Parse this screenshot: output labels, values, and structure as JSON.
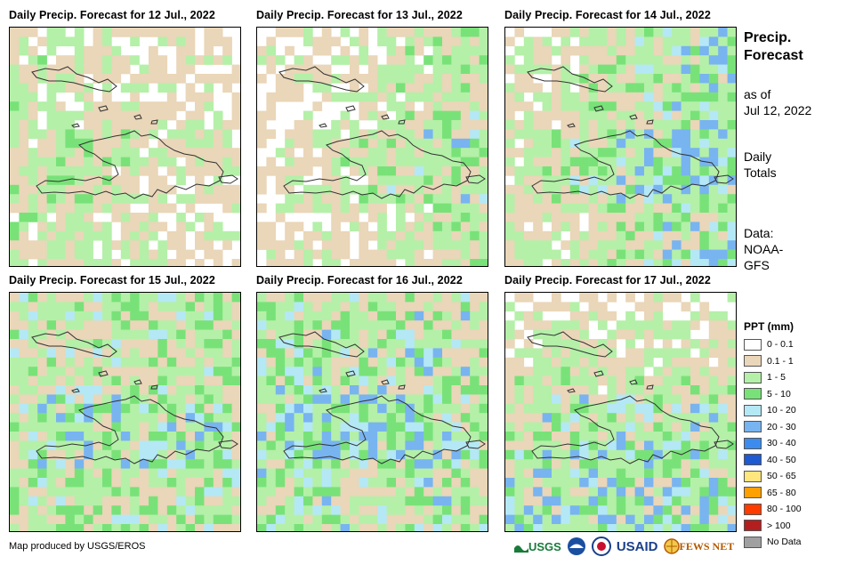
{
  "panels": [
    {
      "title": "Daily Precip. Forecast for 12 Jul., 2022",
      "seed": 11,
      "wet": 0.35,
      "bias": "west"
    },
    {
      "title": "Daily Precip. Forecast for 13 Jul., 2022",
      "seed": 23,
      "wet": 0.45,
      "bias": "east"
    },
    {
      "title": "Daily Precip. Forecast for 14 Jul., 2022",
      "seed": 37,
      "wet": 0.7,
      "bias": "east"
    },
    {
      "title": "Daily Precip. Forecast for 15 Jul., 2022",
      "seed": 41,
      "wet": 0.75,
      "bias": "none"
    },
    {
      "title": "Daily Precip. Forecast for 16 Jul., 2022",
      "seed": 53,
      "wet": 0.85,
      "bias": "none"
    },
    {
      "title": "Daily Precip. Forecast for 17 Jul., 2022",
      "seed": 67,
      "wet": 0.7,
      "bias": "south"
    }
  ],
  "side": {
    "title_line1": "Precip.",
    "title_line2": "Forecast",
    "asof_line1": "as of",
    "asof_line2": "Jul 12, 2022",
    "totals_line1": "Daily",
    "totals_line2": "Totals",
    "data_line1": "Data:",
    "data_line2": "NOAA-",
    "data_line3": "GFS"
  },
  "legend": {
    "title": "PPT (mm)",
    "items": [
      {
        "label": "0 - 0.1",
        "color": "#ffffff"
      },
      {
        "label": "0.1 - 1",
        "color": "#ead6b8"
      },
      {
        "label": "1 - 5",
        "color": "#b4f0a8"
      },
      {
        "label": "5 - 10",
        "color": "#78e278"
      },
      {
        "label": "10 - 20",
        "color": "#b4e8f5"
      },
      {
        "label": "20 - 30",
        "color": "#78b4f0"
      },
      {
        "label": "30 - 40",
        "color": "#3c8cf0"
      },
      {
        "label": "40 - 50",
        "color": "#1e5ad2"
      },
      {
        "label": "50 - 65",
        "color": "#ffe67d"
      },
      {
        "label": "65 - 80",
        "color": "#ffa000"
      },
      {
        "label": "80 - 100",
        "color": "#ff3c00"
      },
      {
        "label": "> 100",
        "color": "#b41e1e"
      },
      {
        "label": "No Data",
        "color": "#a0a0a0"
      }
    ]
  },
  "credit": "Map produced by USGS/EROS",
  "logos": {
    "usgs": "USGS",
    "usaid": "USAID",
    "fewsnet": "FEWS NET"
  }
}
